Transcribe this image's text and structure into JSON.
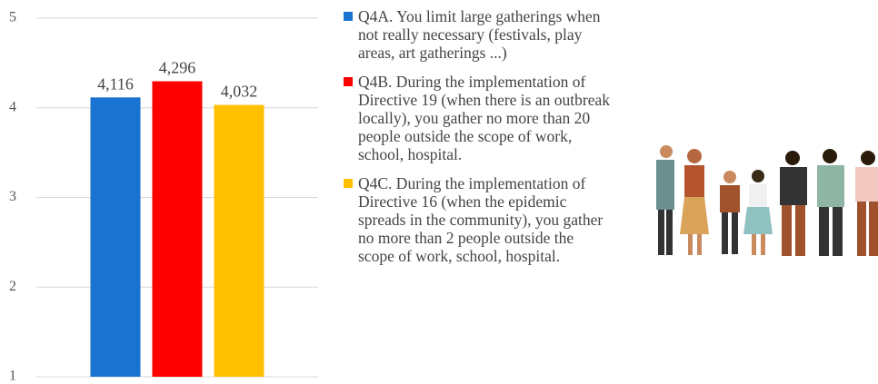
{
  "chart_data": {
    "type": "bar",
    "categories": [
      null
    ],
    "series": [
      {
        "name": "Q4A. You limit large gatherings when not really necessary (festivals, play areas, art gatherings ...)",
        "color": "#1a73d1",
        "values": [
          4.116
        ],
        "value_labels": [
          "4,116"
        ]
      },
      {
        "name": "Q4B. During the implementation of Directive 19 (when there is an outbreak locally), you gather no more than 20 people outside the scope of work, school, hospital.",
        "color": "#ff0000",
        "values": [
          4.296
        ],
        "value_labels": [
          "4,296"
        ]
      },
      {
        "name": "Q4C. During the implementation of Directive 16 (when the epidemic spreads in the community), you gather no more than 2 people outside the scope of work, school, hospital.",
        "color": "#ffc000",
        "values": [
          4.032
        ],
        "value_labels": [
          "4,032"
        ]
      }
    ],
    "ylim": [
      1,
      5
    ],
    "yticks": [
      1,
      2,
      3,
      4,
      5
    ],
    "grid": true,
    "legend": "right"
  }
}
